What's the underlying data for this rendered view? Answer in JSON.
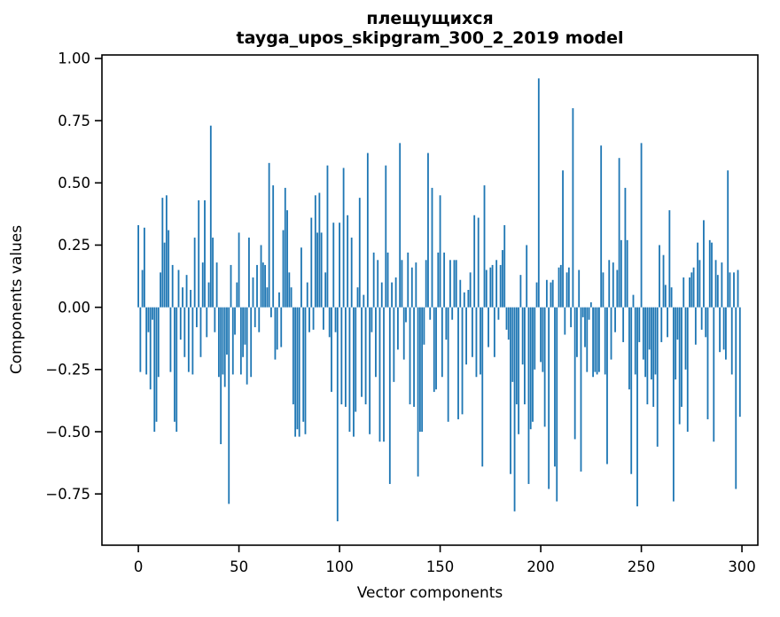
{
  "figure": {
    "title_line1": "плещущихся",
    "title_line2": "tayga_upos_skipgram_300_2_2019 model"
  },
  "chart_data": {
    "type": "bar",
    "title": "плещущихся\ntayga_upos_skipgram_300_2_2019 model",
    "xlabel": "Vector components",
    "ylabel": "Components values",
    "bar_color": "#1f77b4",
    "axis_color": "#000000",
    "grid": false,
    "legend": false,
    "n_components": 300,
    "xlim": [
      -18.1,
      307.9
    ],
    "ylim": [
      -0.956,
      1.014
    ],
    "bar_width_units": 0.8,
    "xticks": [
      {
        "value": 0,
        "label": "0"
      },
      {
        "value": 50,
        "label": "50"
      },
      {
        "value": 100,
        "label": "100"
      },
      {
        "value": 150,
        "label": "150"
      },
      {
        "value": 200,
        "label": "200"
      },
      {
        "value": 250,
        "label": "250"
      },
      {
        "value": 300,
        "label": "300"
      }
    ],
    "yticks": [
      {
        "value": 1.0,
        "label": "1.00"
      },
      {
        "value": 0.75,
        "label": "0.75"
      },
      {
        "value": 0.5,
        "label": "0.50"
      },
      {
        "value": 0.25,
        "label": "0.25"
      },
      {
        "value": 0.0,
        "label": "0.00"
      },
      {
        "value": -0.25,
        "label": "−0.25"
      },
      {
        "value": -0.5,
        "label": "−0.50"
      },
      {
        "value": -0.75,
        "label": "−0.75"
      }
    ],
    "values": [
      0.33,
      -0.26,
      0.15,
      0.32,
      -0.27,
      -0.1,
      -0.33,
      -0.05,
      -0.5,
      -0.46,
      -0.28,
      0.14,
      0.44,
      0.26,
      0.45,
      0.31,
      -0.26,
      0.17,
      -0.46,
      -0.5,
      0.15,
      -0.13,
      0.08,
      -0.2,
      0.13,
      -0.26,
      0.07,
      -0.27,
      0.28,
      -0.08,
      0.43,
      -0.2,
      0.18,
      0.43,
      -0.12,
      0.1,
      0.73,
      0.28,
      -0.1,
      0.18,
      -0.28,
      -0.55,
      -0.27,
      -0.32,
      -0.19,
      -0.79,
      0.17,
      -0.27,
      -0.11,
      0.1,
      0.3,
      -0.27,
      -0.2,
      -0.15,
      -0.31,
      0.28,
      -0.28,
      0.12,
      -0.08,
      0.17,
      -0.1,
      0.25,
      0.18,
      0.17,
      0.08,
      0.58,
      -0.04,
      0.49,
      -0.21,
      -0.17,
      0.06,
      -0.16,
      0.31,
      0.48,
      0.39,
      0.14,
      0.08,
      -0.39,
      -0.52,
      -0.49,
      -0.52,
      0.24,
      -0.46,
      -0.51,
      0.1,
      -0.1,
      0.36,
      -0.09,
      0.45,
      0.3,
      0.46,
      0.3,
      -0.09,
      0.14,
      0.57,
      -0.12,
      -0.34,
      0.34,
      -0.1,
      -0.86,
      0.34,
      -0.39,
      0.56,
      -0.4,
      0.37,
      -0.5,
      0.28,
      -0.52,
      -0.42,
      0.08,
      0.44,
      -0.36,
      0.05,
      -0.39,
      0.62,
      -0.51,
      -0.1,
      0.22,
      -0.28,
      0.19,
      -0.54,
      0.1,
      -0.54,
      0.57,
      0.22,
      -0.71,
      0.1,
      -0.3,
      0.12,
      -0.17,
      0.66,
      0.19,
      -0.21,
      -0.06,
      0.22,
      -0.39,
      0.16,
      -0.4,
      0.18,
      -0.68,
      -0.5,
      -0.5,
      -0.15,
      0.19,
      0.62,
      -0.05,
      0.48,
      -0.34,
      -0.33,
      0.22,
      0.45,
      -0.28,
      0.22,
      -0.13,
      -0.46,
      0.19,
      -0.05,
      0.19,
      0.19,
      -0.45,
      0.11,
      -0.43,
      0.06,
      -0.23,
      0.07,
      0.14,
      -0.2,
      0.37,
      -0.28,
      0.36,
      -0.27,
      -0.64,
      0.49,
      0.15,
      -0.16,
      0.16,
      0.17,
      -0.2,
      0.19,
      -0.05,
      0.17,
      0.23,
      0.33,
      -0.09,
      -0.13,
      -0.67,
      -0.3,
      -0.82,
      -0.39,
      -0.51,
      0.13,
      -0.23,
      -0.39,
      0.25,
      -0.71,
      -0.49,
      -0.46,
      -0.25,
      0.1,
      0.92,
      -0.22,
      -0.26,
      -0.48,
      0.11,
      -0.73,
      0.1,
      0.11,
      -0.64,
      -0.78,
      0.16,
      0.17,
      0.55,
      -0.11,
      0.14,
      0.16,
      -0.08,
      0.8,
      -0.53,
      -0.2,
      0.15,
      -0.66,
      -0.04,
      -0.16,
      -0.26,
      -0.05,
      0.02,
      -0.28,
      -0.26,
      -0.27,
      -0.26,
      0.65,
      0.14,
      -0.27,
      -0.63,
      0.19,
      -0.21,
      0.18,
      -0.1,
      0.15,
      0.6,
      0.27,
      -0.14,
      0.48,
      0.27,
      -0.33,
      -0.67,
      0.05,
      -0.27,
      -0.8,
      -0.14,
      0.66,
      -0.21,
      -0.28,
      -0.39,
      -0.17,
      -0.29,
      -0.4,
      -0.27,
      -0.56,
      0.25,
      -0.14,
      0.21,
      0.09,
      -0.12,
      0.39,
      0.08,
      -0.78,
      -0.29,
      -0.13,
      -0.47,
      -0.4,
      0.12,
      -0.25,
      -0.5,
      0.12,
      0.14,
      0.16,
      -0.15,
      0.26,
      0.19,
      -0.09,
      0.35,
      -0.12,
      -0.45,
      0.27,
      0.26,
      -0.54,
      0.19,
      0.13,
      -0.18,
      0.18,
      -0.17,
      -0.21,
      0.55,
      0.14,
      -0.27,
      0.14,
      -0.73,
      0.15,
      -0.44
    ]
  }
}
